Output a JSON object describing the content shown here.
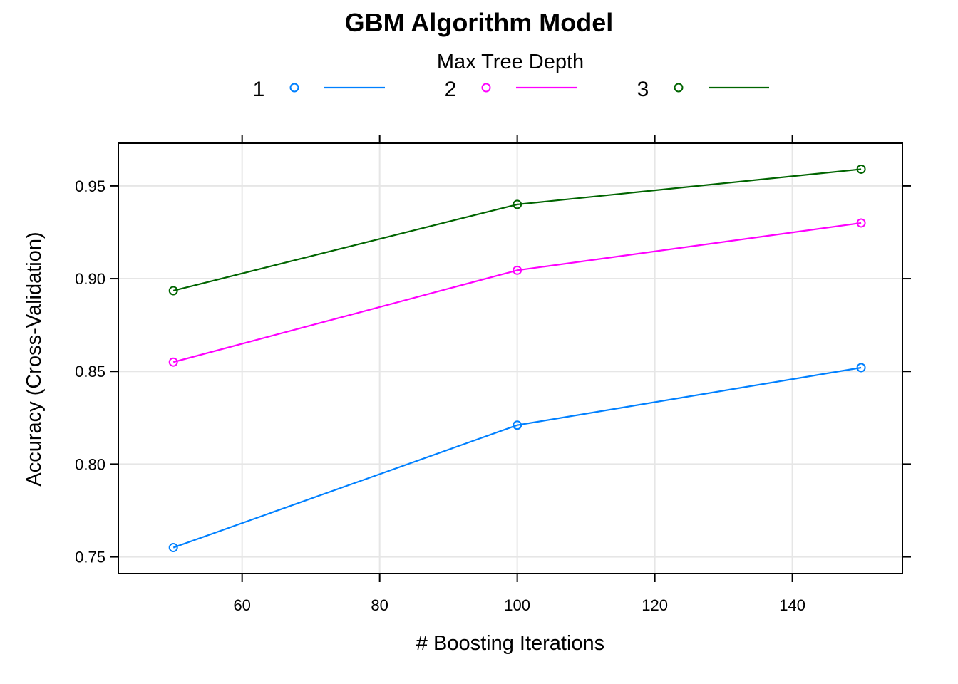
{
  "chart_data": {
    "type": "line",
    "title": "GBM Algorithm Model",
    "legend_title": "Max Tree Depth",
    "legend_position": "top",
    "xlabel": "# Boosting Iterations",
    "ylabel": "Accuracy (Cross-Validation)",
    "x": [
      50,
      100,
      150
    ],
    "xlim": [
      42,
      156
    ],
    "ylim": [
      0.741,
      0.973
    ],
    "x_ticks": [
      60,
      80,
      100,
      120,
      140
    ],
    "y_ticks": [
      0.75,
      0.8,
      0.85,
      0.9,
      0.95
    ],
    "x_tick_labels": [
      "60",
      "80",
      "100",
      "120",
      "140"
    ],
    "y_tick_labels": [
      "0.75",
      "0.80",
      "0.85",
      "0.90",
      "0.95"
    ],
    "grid": true,
    "series": [
      {
        "name": "1",
        "color": "#0080ff",
        "values": [
          0.755,
          0.821,
          0.852
        ]
      },
      {
        "name": "2",
        "color": "#ff00ff",
        "values": [
          0.855,
          0.9045,
          0.93
        ]
      },
      {
        "name": "3",
        "color": "#006400",
        "values": [
          0.8935,
          0.94,
          0.959
        ]
      }
    ]
  }
}
